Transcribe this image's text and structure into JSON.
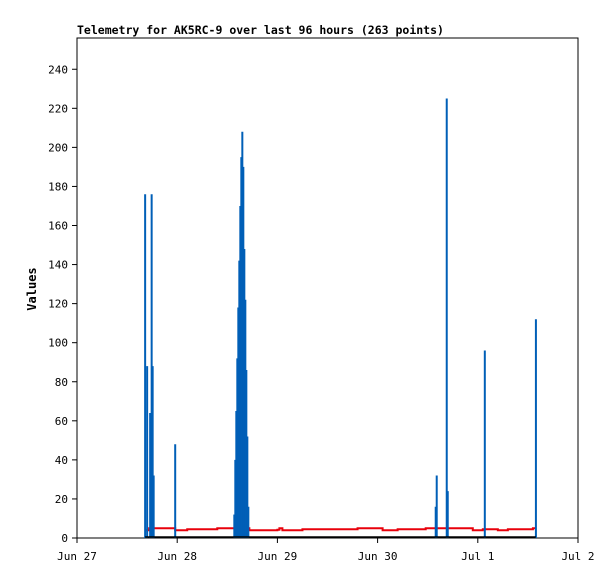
{
  "chart_data": {
    "type": "line",
    "title": "Telemetry for AK5RC-9 over last 96 hours (263 points)",
    "xlabel": "",
    "ylabel": "Values",
    "x_ticks": [
      "Jun 27",
      "Jun 28",
      "Jun 29",
      "Jun 30",
      "Jul 1",
      "Jul 2"
    ],
    "x_range_days": [
      0,
      5
    ],
    "ylim": [
      0,
      256
    ],
    "y_ticks": [
      0,
      20,
      40,
      60,
      80,
      100,
      120,
      140,
      160,
      180,
      200,
      220,
      240
    ],
    "grid": false,
    "legend": "none",
    "series": [
      {
        "color": "#e8000b",
        "style": "step",
        "points": [
          [
            0.68,
            4
          ],
          [
            0.72,
            5
          ],
          [
            0.98,
            4
          ],
          [
            1.1,
            4.5
          ],
          [
            1.4,
            5
          ],
          [
            1.72,
            4
          ],
          [
            2.0,
            4.2
          ],
          [
            2.02,
            5
          ],
          [
            2.05,
            4
          ],
          [
            2.25,
            4.5
          ],
          [
            2.8,
            5
          ],
          [
            3.05,
            4
          ],
          [
            3.2,
            4.5
          ],
          [
            3.48,
            5
          ],
          [
            3.95,
            4
          ],
          [
            4.05,
            4.5
          ],
          [
            4.2,
            4
          ],
          [
            4.3,
            4.5
          ],
          [
            4.55,
            5
          ],
          [
            4.58,
            5
          ]
        ]
      },
      {
        "color": "#005fb7",
        "style": "spikes",
        "points": [
          [
            0.68,
            176
          ],
          [
            0.7,
            88
          ],
          [
            0.73,
            64
          ],
          [
            0.745,
            176
          ],
          [
            0.755,
            88
          ],
          [
            0.765,
            32
          ],
          [
            0.98,
            48
          ],
          [
            1.57,
            12
          ],
          [
            1.58,
            40
          ],
          [
            1.59,
            65
          ],
          [
            1.6,
            92
          ],
          [
            1.61,
            118
          ],
          [
            1.62,
            142
          ],
          [
            1.63,
            170
          ],
          [
            1.64,
            195
          ],
          [
            1.65,
            208
          ],
          [
            1.66,
            190
          ],
          [
            1.67,
            148
          ],
          [
            1.68,
            122
          ],
          [
            1.69,
            86
          ],
          [
            1.7,
            52
          ],
          [
            1.71,
            16
          ],
          [
            3.58,
            16
          ],
          [
            3.59,
            32
          ],
          [
            3.69,
            225
          ],
          [
            3.7,
            24
          ],
          [
            4.07,
            96
          ],
          [
            4.58,
            112
          ]
        ]
      }
    ]
  }
}
